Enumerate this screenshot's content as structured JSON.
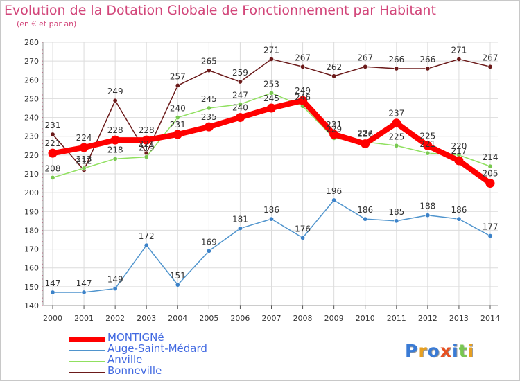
{
  "title": "Evolution de la Dotation Globale de Fonctionnement par Habitant",
  "subtitle": "(en € et par an)",
  "logo_text": "Proxiti",
  "colors": {
    "title": "#d2467a",
    "grid": "#dcdcdc",
    "axis": "#888888",
    "legend_text": "#4169e1"
  },
  "chart_data": {
    "type": "line",
    "title": "Evolution de la Dotation Globale de Fonctionnement par Habitant",
    "subtitle": "(en € et par an)",
    "xlabel": "",
    "ylabel": "",
    "ylim": [
      140,
      280
    ],
    "yticks": [
      "140",
      "150",
      "160",
      "170",
      "180",
      "190",
      "200",
      "210",
      "220",
      "230",
      "240",
      "250",
      "260",
      "270",
      "280"
    ],
    "x": [
      "2000",
      "2001",
      "2002",
      "2003",
      "2004",
      "2005",
      "2006",
      "2007",
      "2008",
      "2009",
      "2010",
      "2011",
      "2012",
      "2013",
      "2014"
    ],
    "grid": true,
    "legend_position": "bottom-left",
    "series": [
      {
        "name": "Bonneville",
        "color": "#6b1a1a",
        "marker": "#6b1a1a",
        "values": [
          231,
          212,
          249,
          221,
          257,
          265,
          259,
          271,
          267,
          262,
          267,
          266,
          266,
          271,
          267
        ],
        "labels": [
          "231",
          "212",
          "249",
          "221",
          "257",
          "265",
          "259",
          "271",
          "267",
          "262",
          "267",
          "266",
          "266",
          "271",
          "267"
        ]
      },
      {
        "name": "Anville",
        "color": "#90e060",
        "marker": "#78c850",
        "values": [
          208,
          213,
          218,
          219,
          240,
          245,
          247,
          253,
          246,
          229,
          227,
          225,
          221,
          220,
          214
        ],
        "labels": [
          "208",
          "213",
          "218",
          "219",
          "240",
          "245",
          "247",
          "253",
          "246",
          "229",
          "227",
          "225",
          "221",
          "220",
          "214"
        ]
      },
      {
        "name": "Auge-Saint-Médard",
        "color": "#4f94cd",
        "marker": "#3c82c8",
        "values": [
          147,
          147,
          149,
          172,
          151,
          169,
          181,
          186,
          176,
          196,
          186,
          185,
          188,
          186,
          177
        ],
        "labels": [
          "147",
          "147",
          "149",
          "172",
          "151",
          "169",
          "181",
          "186",
          "176",
          "196",
          "186",
          "185",
          "188",
          "186",
          "177"
        ]
      },
      {
        "name": "MONTIGNé",
        "color": "#ff0000",
        "marker": "#ff0000",
        "values": [
          221,
          224,
          228,
          228,
          231,
          235,
          240,
          245,
          249,
          231,
          226,
          237,
          225,
          217,
          205
        ],
        "labels": [
          "221",
          "224",
          "228",
          "228",
          "231",
          "235",
          "240",
          "245",
          "249",
          "231",
          "226",
          "237",
          "225",
          "217",
          "205"
        ]
      }
    ],
    "legend": [
      {
        "name": "MONTIGNé"
      },
      {
        "name": "Auge-Saint-Médard"
      },
      {
        "name": "Anville"
      },
      {
        "name": "Bonneville"
      }
    ]
  }
}
